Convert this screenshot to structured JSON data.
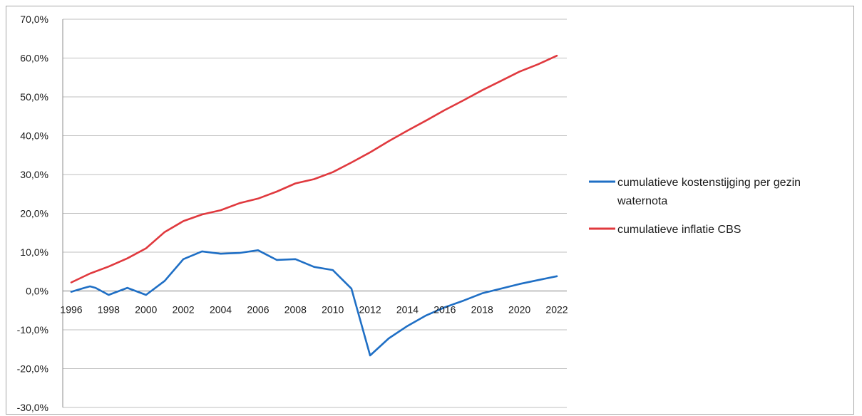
{
  "chart_data": {
    "type": "line",
    "title": "",
    "xlabel": "",
    "ylabel": "",
    "x": [
      1996,
      1997,
      1998,
      1999,
      2000,
      2001,
      2002,
      2003,
      2004,
      2005,
      2006,
      2007,
      2008,
      2009,
      2010,
      2011,
      2012,
      2013,
      2014,
      2015,
      2016,
      2017,
      2018,
      2019,
      2020,
      2021,
      2022
    ],
    "x_ticks": [
      "1996",
      "1998",
      "2000",
      "2002",
      "2004",
      "2006",
      "2008",
      "2010",
      "2012",
      "2014",
      "2016",
      "2018",
      "2020",
      "2022"
    ],
    "y_ticks": [
      "70,0%",
      "60,0%",
      "50,0%",
      "40,0%",
      "30,0%",
      "20,0%",
      "10,0%",
      "0,0%",
      "-10,0%",
      "-20,0%",
      "-30,0%"
    ],
    "ylim": [
      -30,
      70
    ],
    "y_unit": "%",
    "grid": true,
    "legend_position": "right",
    "series": [
      {
        "name_lines": [
          "cumulatieve kostenstijging per gezin",
          "waternota"
        ],
        "color": "#1f6fc5",
        "points": [
          [
            1996,
            -0.2
          ],
          [
            1996.7,
            0.8
          ],
          [
            1997,
            1.2
          ],
          [
            1997.3,
            0.8
          ],
          [
            1998,
            -1.0
          ],
          [
            1999,
            0.8
          ],
          [
            2000,
            -1.0
          ],
          [
            2001,
            2.6
          ],
          [
            2002,
            8.2
          ],
          [
            2003,
            10.2
          ],
          [
            2004,
            9.6
          ],
          [
            2005,
            9.8
          ],
          [
            2006,
            10.5
          ],
          [
            2007,
            8.0
          ],
          [
            2008,
            8.2
          ],
          [
            2009,
            6.2
          ],
          [
            2010,
            5.4
          ],
          [
            2011,
            0.6
          ],
          [
            2012,
            -16.6
          ],
          [
            2013,
            -12.2
          ],
          [
            2014,
            -9.0
          ],
          [
            2015,
            -6.3
          ],
          [
            2016,
            -4.2
          ],
          [
            2017,
            -2.5
          ],
          [
            2018,
            -0.6
          ],
          [
            2019,
            0.6
          ],
          [
            2020,
            1.8
          ],
          [
            2021,
            2.8
          ],
          [
            2022,
            3.8
          ]
        ]
      },
      {
        "name_lines": [
          "cumulatieve inflatie CBS"
        ],
        "color": "#e0393e",
        "points": [
          [
            1996,
            2.2
          ],
          [
            1997,
            4.5
          ],
          [
            1998,
            6.3
          ],
          [
            1999,
            8.4
          ],
          [
            2000,
            11.0
          ],
          [
            2001,
            15.2
          ],
          [
            2002,
            18.0
          ],
          [
            2003,
            19.7
          ],
          [
            2004,
            20.8
          ],
          [
            2005,
            22.6
          ],
          [
            2006,
            23.8
          ],
          [
            2007,
            25.6
          ],
          [
            2008,
            27.7
          ],
          [
            2009,
            28.8
          ],
          [
            2010,
            30.6
          ],
          [
            2011,
            33.1
          ],
          [
            2012,
            35.7
          ],
          [
            2013,
            38.6
          ],
          [
            2014,
            41.3
          ],
          [
            2015,
            43.9
          ],
          [
            2016,
            46.6
          ],
          [
            2017,
            49.1
          ],
          [
            2018,
            51.7
          ],
          [
            2019,
            54.1
          ],
          [
            2020,
            56.5
          ],
          [
            2021,
            58.4
          ],
          [
            2022,
            60.6
          ]
        ]
      }
    ]
  }
}
